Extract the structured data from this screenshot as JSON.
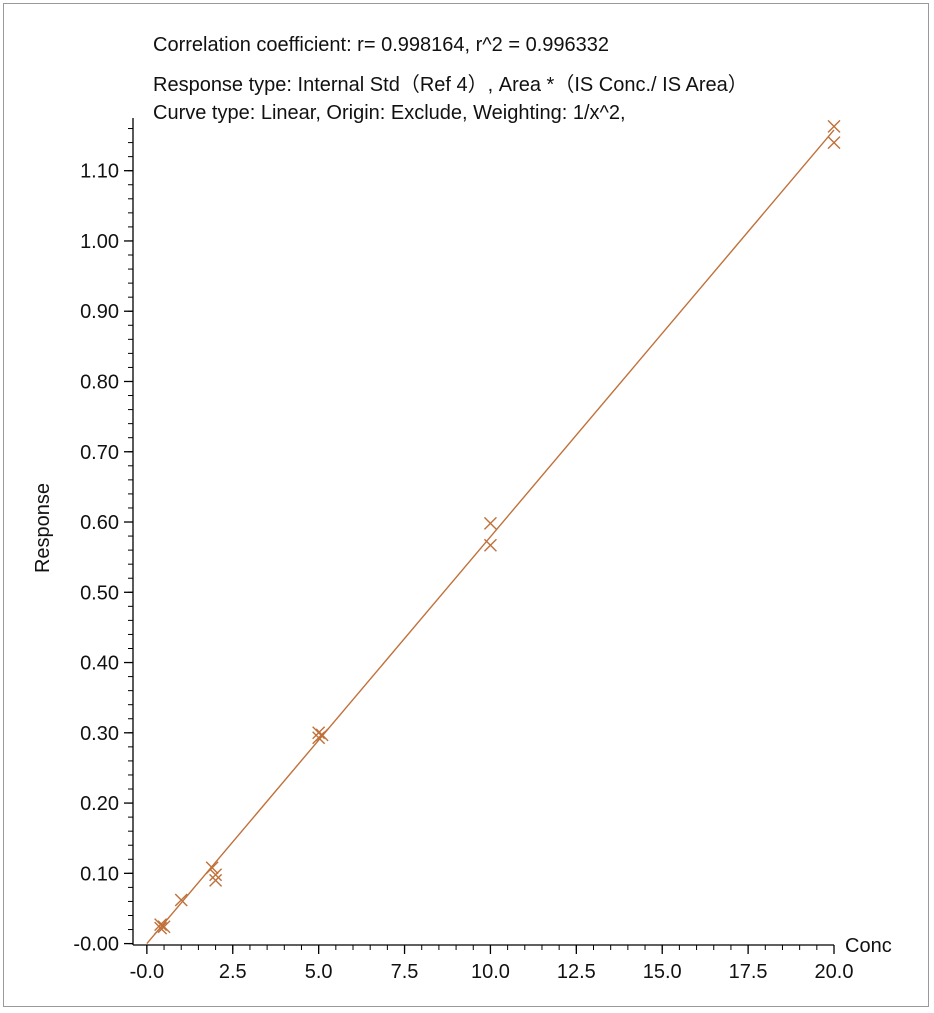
{
  "chart_data": {
    "type": "scatter",
    "info_lines": [
      "Correlation coefficient: r= 0.998164, r^2 = 0.996332",
      "Response type: Internal Std（Ref 4）, Area *（IS Conc./ IS Area）",
      "Curve type: Linear, Origin: Exclude, Weighting: 1/x^2,"
    ],
    "xlabel": "Conc",
    "ylabel": "Response",
    "xlim": [
      -0.2,
      20.0
    ],
    "ylim": [
      -0.002,
      1.175
    ],
    "xticks": [
      {
        "value": 0.0,
        "label": "-0.0"
      },
      {
        "value": 2.5,
        "label": "2.5"
      },
      {
        "value": 5.0,
        "label": "5.0"
      },
      {
        "value": 7.5,
        "label": "7.5"
      },
      {
        "value": 10.0,
        "label": "10.0"
      },
      {
        "value": 12.5,
        "label": "12.5"
      },
      {
        "value": 15.0,
        "label": "15.0"
      },
      {
        "value": 17.5,
        "label": "17.5"
      },
      {
        "value": 20.0,
        "label": "20.0"
      }
    ],
    "yticks": [
      {
        "value": 0.0,
        "label": "-0.00"
      },
      {
        "value": 0.1,
        "label": "0.10"
      },
      {
        "value": 0.2,
        "label": "0.20"
      },
      {
        "value": 0.3,
        "label": "0.30"
      },
      {
        "value": 0.4,
        "label": "0.40"
      },
      {
        "value": 0.5,
        "label": "0.50"
      },
      {
        "value": 0.6,
        "label": "0.60"
      },
      {
        "value": 0.7,
        "label": "0.70"
      },
      {
        "value": 0.8,
        "label": "0.80"
      },
      {
        "value": 0.9,
        "label": "0.90"
      },
      {
        "value": 1.0,
        "label": "1.00"
      },
      {
        "value": 1.1,
        "label": "1.10"
      }
    ],
    "minor_ticks_per_major": 5,
    "points": [
      {
        "x": 0.4,
        "y": 0.027
      },
      {
        "x": 0.4,
        "y": 0.022
      },
      {
        "x": 0.5,
        "y": 0.024
      },
      {
        "x": 1.0,
        "y": 0.062
      },
      {
        "x": 1.9,
        "y": 0.108
      },
      {
        "x": 2.0,
        "y": 0.098
      },
      {
        "x": 2.0,
        "y": 0.09
      },
      {
        "x": 5.0,
        "y": 0.3
      },
      {
        "x": 5.0,
        "y": 0.293
      },
      {
        "x": 5.1,
        "y": 0.297
      },
      {
        "x": 10.0,
        "y": 0.598
      },
      {
        "x": 10.0,
        "y": 0.567
      },
      {
        "x": 20.0,
        "y": 1.163
      },
      {
        "x": 20.0,
        "y": 1.14
      }
    ],
    "fit_line": {
      "x": [
        0.0,
        20.0
      ],
      "y": [
        0.0,
        1.158
      ]
    },
    "color": "#c0713a"
  }
}
